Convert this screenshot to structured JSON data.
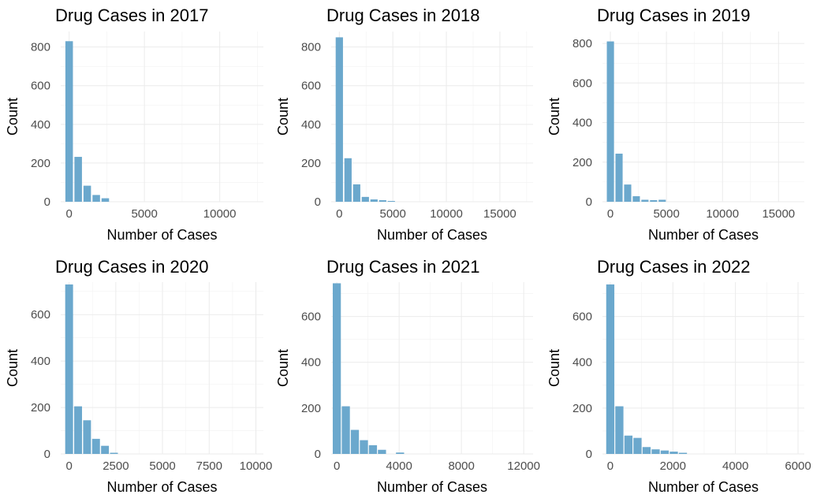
{
  "chart_data": [
    {
      "type": "bar",
      "title": "Drug Cases in 2017",
      "xlabel": "Number of Cases",
      "ylabel": "Count",
      "xlim": [
        -560,
        12900
      ],
      "ylim": [
        0,
        880
      ],
      "xticks": [
        0,
        5000,
        10000
      ],
      "xtick_labels": [
        "0",
        "5000",
        "10000"
      ],
      "yticks": [
        0,
        200,
        400,
        600,
        800
      ],
      "ytick_labels": [
        "0",
        "200",
        "400",
        "600",
        "800"
      ],
      "bin_width": 500,
      "bins": [
        {
          "center": 0,
          "count": 830
        },
        {
          "center": 600,
          "count": 232
        },
        {
          "center": 1200,
          "count": 83
        },
        {
          "center": 1800,
          "count": 35
        },
        {
          "center": 2400,
          "count": 18
        }
      ],
      "grid": true,
      "bar_color": "#6ba8cd"
    },
    {
      "type": "bar",
      "title": "Drug Cases in 2018",
      "xlabel": "Number of Cases",
      "ylabel": "Count",
      "xlim": [
        -760,
        18100
      ],
      "ylim": [
        0,
        880
      ],
      "xticks": [
        0,
        5000,
        10000,
        15000
      ],
      "xtick_labels": [
        "0",
        "5000",
        "10000",
        "15000"
      ],
      "yticks": [
        0,
        200,
        400,
        600,
        800
      ],
      "ytick_labels": [
        "0",
        "200",
        "400",
        "600",
        "800"
      ],
      "bin_width": 680,
      "bins": [
        {
          "center": 0,
          "count": 850
        },
        {
          "center": 810,
          "count": 225
        },
        {
          "center": 1620,
          "count": 90
        },
        {
          "center": 2430,
          "count": 25
        },
        {
          "center": 3240,
          "count": 12
        },
        {
          "center": 4050,
          "count": 8
        },
        {
          "center": 4860,
          "count": 4
        }
      ],
      "grid": true,
      "bar_color": "#6ba8cd"
    },
    {
      "type": "bar",
      "title": "Drug Cases in 2019",
      "xlabel": "Number of Cases",
      "ylabel": "Count",
      "xlim": [
        -710,
        17300
      ],
      "ylim": [
        0,
        860
      ],
      "xticks": [
        0,
        5000,
        10000,
        15000
      ],
      "xtick_labels": [
        "0",
        "5000",
        "10000",
        "15000"
      ],
      "yticks": [
        0,
        200,
        400,
        600,
        800
      ],
      "ytick_labels": [
        "0",
        "200",
        "400",
        "600",
        "800"
      ],
      "bin_width": 640,
      "bins": [
        {
          "center": 0,
          "count": 810
        },
        {
          "center": 770,
          "count": 243
        },
        {
          "center": 1540,
          "count": 87
        },
        {
          "center": 2310,
          "count": 28
        },
        {
          "center": 3080,
          "count": 10
        },
        {
          "center": 3850,
          "count": 8
        },
        {
          "center": 4620,
          "count": 10
        }
      ],
      "grid": true,
      "bar_color": "#6ba8cd"
    },
    {
      "type": "bar",
      "title": "Drug Cases in 2020",
      "xlabel": "Number of Cases",
      "ylabel": "Count",
      "xlim": [
        -450,
        10400
      ],
      "ylim": [
        0,
        740
      ],
      "xticks": [
        0,
        2500,
        5000,
        7500,
        10000
      ],
      "xtick_labels": [
        "0",
        "2500",
        "5000",
        "7500",
        "10000"
      ],
      "yticks": [
        0,
        200,
        400,
        600
      ],
      "ytick_labels": [
        "0",
        "200",
        "400",
        "600"
      ],
      "bin_width": 420,
      "bins": [
        {
          "center": 0,
          "count": 730
        },
        {
          "center": 480,
          "count": 205
        },
        {
          "center": 960,
          "count": 145
        },
        {
          "center": 1440,
          "count": 65
        },
        {
          "center": 1920,
          "count": 35
        },
        {
          "center": 2400,
          "count": 5
        }
      ],
      "grid": true,
      "bar_color": "#6ba8cd"
    },
    {
      "type": "bar",
      "title": "Drug Cases in 2021",
      "xlabel": "Number of Cases",
      "ylabel": "Count",
      "xlim": [
        -360,
        12600
      ],
      "ylim": [
        0,
        750
      ],
      "xticks": [
        0,
        4000,
        8000,
        12000
      ],
      "xtick_labels": [
        "0",
        "4000",
        "8000",
        "12000"
      ],
      "yticks": [
        0,
        200,
        400,
        600
      ],
      "ytick_labels": [
        "0",
        "200",
        "400",
        "600"
      ],
      "bin_width": 520,
      "bins": [
        {
          "center": 0,
          "count": 745
        },
        {
          "center": 580,
          "count": 208
        },
        {
          "center": 1160,
          "count": 105
        },
        {
          "center": 1740,
          "count": 60
        },
        {
          "center": 2320,
          "count": 38
        },
        {
          "center": 2900,
          "count": 18
        },
        {
          "center": 4060,
          "count": 6
        }
      ],
      "grid": true,
      "bar_color": "#6ba8cd"
    },
    {
      "type": "bar",
      "title": "Drug Cases in 2022",
      "xlabel": "Number of Cases",
      "ylabel": "Count",
      "xlim": [
        -250,
        6200
      ],
      "ylim": [
        0,
        750
      ],
      "xticks": [
        0,
        2000,
        4000,
        6000
      ],
      "xtick_labels": [
        "0",
        "2000",
        "4000",
        "6000"
      ],
      "yticks": [
        0,
        200,
        400,
        600
      ],
      "ytick_labels": [
        "0",
        "200",
        "400",
        "600"
      ],
      "bin_width": 260,
      "bins": [
        {
          "center": 0,
          "count": 740
        },
        {
          "center": 290,
          "count": 208
        },
        {
          "center": 580,
          "count": 80
        },
        {
          "center": 870,
          "count": 70
        },
        {
          "center": 1160,
          "count": 30
        },
        {
          "center": 1450,
          "count": 20
        },
        {
          "center": 1740,
          "count": 15
        },
        {
          "center": 2030,
          "count": 10
        },
        {
          "center": 2320,
          "count": 5
        }
      ],
      "grid": true,
      "bar_color": "#6ba8cd"
    }
  ]
}
